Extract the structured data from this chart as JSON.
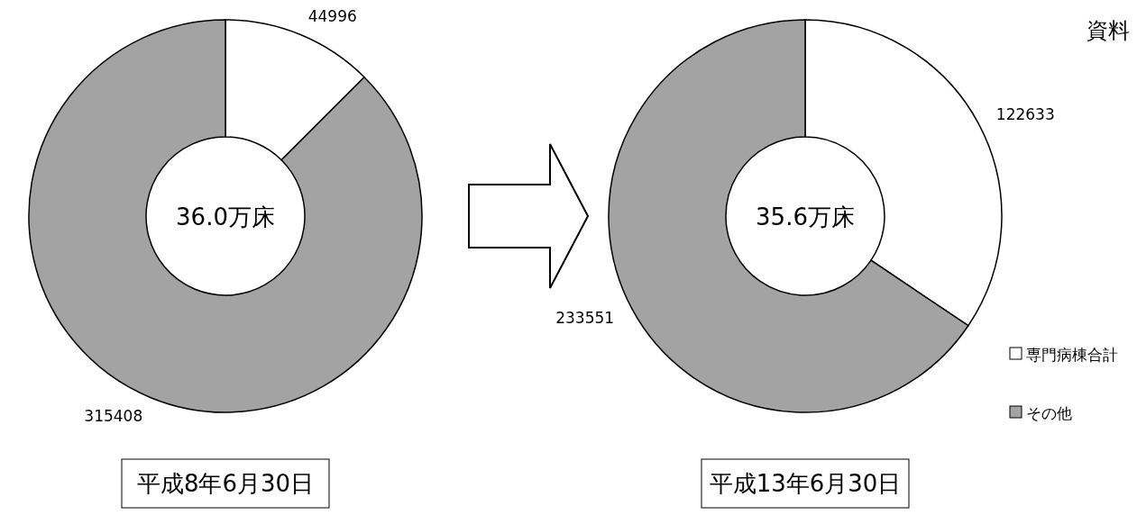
{
  "chart_data": [
    {
      "type": "donut",
      "title": "平成8年6月30日",
      "categories": [
        null,
        null
      ],
      "values": [
        44996,
        315408
      ],
      "colors": [
        "#ffffff",
        "#a3a3a3"
      ],
      "data_labels": true,
      "annotations": [
        "36.0万床"
      ]
    },
    {
      "type": "donut",
      "title": "平成13年6月30日",
      "categories": [
        "専門病棟合計",
        "その他"
      ],
      "values": [
        122633,
        233551
      ],
      "colors": [
        "#ffffff",
        "#a3a3a3"
      ],
      "data_labels": true,
      "legend": "right",
      "annotations": [
        "35.6万床",
        "資料"
      ]
    }
  ]
}
